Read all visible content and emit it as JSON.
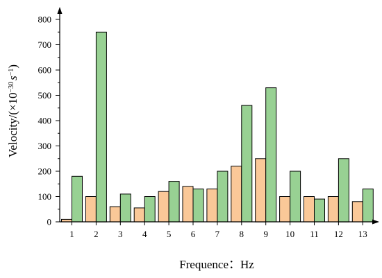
{
  "chart_data": {
    "type": "bar",
    "xlabel": "Frequence：Hz",
    "ylabel": {
      "prefix": "Velocity/(×10",
      "exp1": "−30",
      "mid": "s",
      "exp2": "−1",
      "suffix": ")"
    },
    "categories": [
      "1",
      "2",
      "3",
      "4",
      "5",
      "6",
      "7",
      "8",
      "9",
      "10",
      "11",
      "12",
      "13"
    ],
    "series": [
      {
        "color": "#fac898",
        "values": [
          10,
          100,
          60,
          55,
          120,
          140,
          130,
          220,
          250,
          100,
          100,
          100,
          80
        ]
      },
      {
        "color": "#98d193",
        "values": [
          180,
          750,
          110,
          100,
          160,
          130,
          200,
          460,
          530,
          200,
          90,
          250,
          130
        ]
      }
    ],
    "ylim": [
      0,
      850
    ],
    "yticks": [
      0,
      100,
      200,
      300,
      400,
      500,
      600,
      700,
      800
    ],
    "grid": false
  }
}
